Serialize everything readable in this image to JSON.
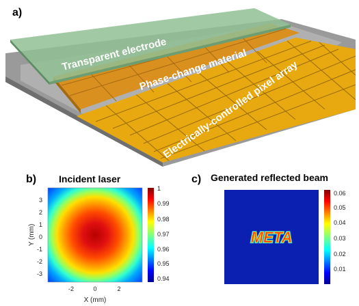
{
  "panel_a": {
    "label": "a)",
    "layers": [
      {
        "name": "Transparent electrode",
        "color": "#8fbf94"
      },
      {
        "name": "Phase-change material",
        "color": "#d9901e"
      },
      {
        "name": "Electrically-controlled pixel array",
        "color": "#e8a910"
      }
    ]
  },
  "panel_b": {
    "label": "b)",
    "title": "Incident laser",
    "xlabel": "X (mm)",
    "ylabel": "Y (mm)",
    "xticks": [
      "-2",
      "0",
      "2"
    ],
    "yticks": [
      "3",
      "2",
      "1",
      "0",
      "-1",
      "-2",
      "-3"
    ],
    "colorbar_ticks": [
      "1",
      "0.99",
      "0.98",
      "0.97",
      "0.96",
      "0.95",
      "0.94"
    ]
  },
  "panel_c": {
    "label": "c)",
    "title": "Generated reflected beam",
    "pattern_text": "META",
    "colorbar_ticks": [
      "0.06",
      "0.05",
      "0.04",
      "0.03",
      "0.02",
      "0.01"
    ]
  },
  "chart_data": [
    {
      "type": "heatmap",
      "title": "Incident laser",
      "xlabel": "X (mm)",
      "ylabel": "Y (mm)",
      "xlim": [
        -4,
        4
      ],
      "ylim": [
        -3.8,
        3.8
      ],
      "color_range": [
        0.935,
        1.0
      ],
      "description_values": {
        "center_value": 1.0,
        "edge_value": 0.94
      },
      "colormap": "jet"
    },
    {
      "type": "heatmap",
      "title": "Generated reflected beam",
      "color_range": [
        0.0,
        0.065
      ],
      "pattern_text": "META",
      "colormap": "jet"
    }
  ]
}
